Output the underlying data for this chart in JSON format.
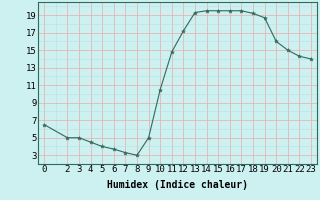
{
  "x": [
    0,
    2,
    3,
    4,
    5,
    6,
    7,
    8,
    9,
    10,
    11,
    12,
    13,
    14,
    15,
    16,
    17,
    18,
    19,
    20,
    21,
    22,
    23
  ],
  "y": [
    6.5,
    5.0,
    5.0,
    4.5,
    4.0,
    3.7,
    3.3,
    3.0,
    5.0,
    10.5,
    14.8,
    17.2,
    19.3,
    19.5,
    19.5,
    19.5,
    19.5,
    19.2,
    18.7,
    16.0,
    15.0,
    14.3,
    14.0
  ],
  "line_color": "#2e6b5e",
  "marker": "*",
  "marker_size": 3,
  "bg_color": "#cdf0f0",
  "grid_major_color": "#e8aaaa",
  "grid_minor_color": "#b8e0e0",
  "xlabel": "Humidex (Indice chaleur)",
  "xlim": [
    -0.5,
    23.5
  ],
  "ylim": [
    2,
    20.5
  ],
  "yticks": [
    3,
    5,
    7,
    9,
    11,
    13,
    15,
    17,
    19
  ],
  "xticks": [
    0,
    2,
    3,
    4,
    5,
    6,
    7,
    8,
    9,
    10,
    11,
    12,
    13,
    14,
    15,
    16,
    17,
    18,
    19,
    20,
    21,
    22,
    23
  ],
  "xlabel_fontsize": 7,
  "tick_fontsize": 6.5
}
